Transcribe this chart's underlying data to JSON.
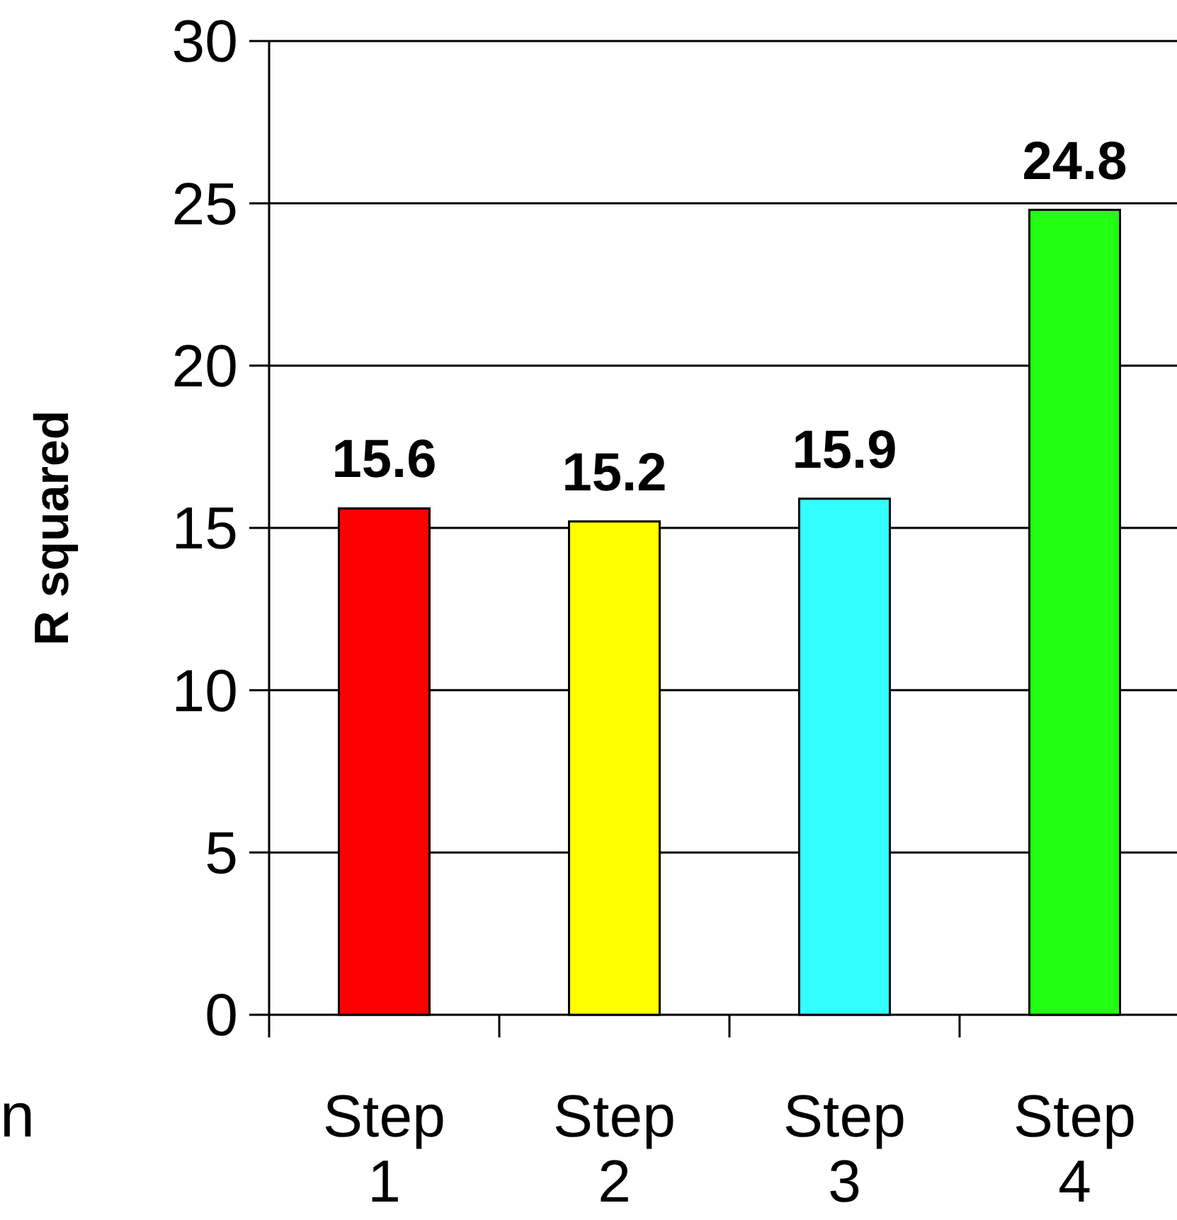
{
  "chart_data": {
    "type": "bar",
    "ylabel": "R squared",
    "categories": [
      "Step 1",
      "Step 2",
      "Step 3",
      "Step 4"
    ],
    "values": [
      15.6,
      15.2,
      15.9,
      24.8
    ],
    "colors": [
      "#ff0000",
      "#ffff00",
      "#33ffff",
      "#22ff11"
    ],
    "ylim": [
      0,
      30
    ],
    "yticks": [
      0,
      5,
      10,
      15,
      20,
      25,
      30
    ],
    "grid": "y",
    "data_labels": true,
    "annotations": [
      "n"
    ]
  }
}
